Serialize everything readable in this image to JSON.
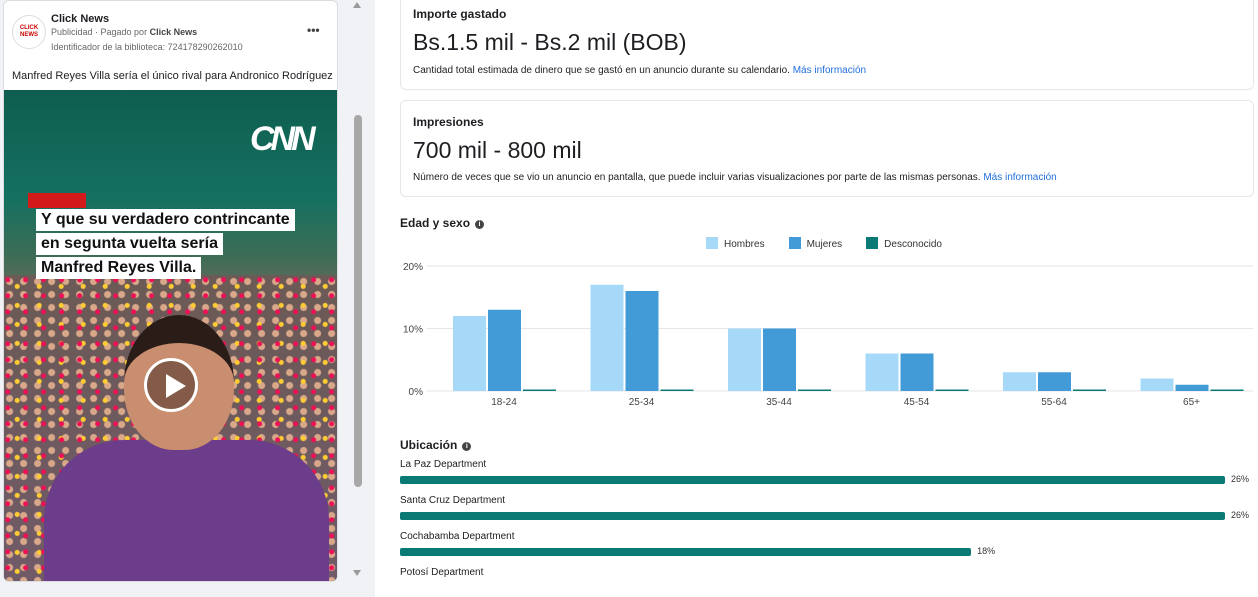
{
  "ad": {
    "page_name": "Click News",
    "logo_text": "CLICK NEWS",
    "meta_prefix": "Publicidad · Pagado por ",
    "payer": "Click News",
    "library_id": "Identificador de la biblioteca: 724178290262010",
    "more": "•••",
    "caption": "Manfred Reyes Villa sería el único rival para Andronico Rodríguez",
    "video": {
      "brand": "CNN",
      "headline": [
        "Y que su verdadero contrincante",
        "en segunta vuelta sería",
        "Manfred Reyes Villa."
      ]
    }
  },
  "spend": {
    "title": "Importe gastado",
    "value": "Bs.1.5 mil - Bs.2 mil (BOB)",
    "desc": "Cantidad total estimada de dinero que se gastó en un anuncio durante su calendario. ",
    "link": "Más información"
  },
  "impressions": {
    "title": "Impresiones",
    "value": "700 mil - 800 mil",
    "desc": "Número de veces que se vio un anuncio en pantalla, que puede incluir varias visualizaciones por parte de las mismas personas. ",
    "link": "Más información"
  },
  "age_gender": {
    "title": "Edad y sexo",
    "info": "i"
  },
  "location": {
    "title": "Ubicación",
    "info": "i",
    "items": [
      {
        "name": "La Paz Department",
        "value": 26,
        "label": "26%"
      },
      {
        "name": "Santa Cruz Department",
        "value": 26,
        "label": "26%"
      },
      {
        "name": "Cochabamba Department",
        "value": 18,
        "label": "18%"
      },
      {
        "name": "Potosí Department",
        "value": null,
        "label": ""
      }
    ]
  },
  "chart_data": {
    "type": "bar",
    "categories": [
      "18-24",
      "25-34",
      "35-44",
      "45-54",
      "55-64",
      "65+"
    ],
    "series": [
      {
        "name": "Hombres",
        "color": "#a6d9f7",
        "values": [
          12,
          17,
          10,
          6,
          3,
          2
        ]
      },
      {
        "name": "Mujeres",
        "color": "#429bd6",
        "values": [
          13,
          16,
          10,
          6,
          3,
          1
        ]
      },
      {
        "name": "Desconocido",
        "color": "#0b7a75",
        "values": [
          0.2,
          0.2,
          0.2,
          0.2,
          0.2,
          0.2
        ]
      }
    ],
    "yticks": [
      "0%",
      "10%",
      "20%"
    ],
    "ylim": [
      0,
      20
    ],
    "legend": "top-center"
  }
}
